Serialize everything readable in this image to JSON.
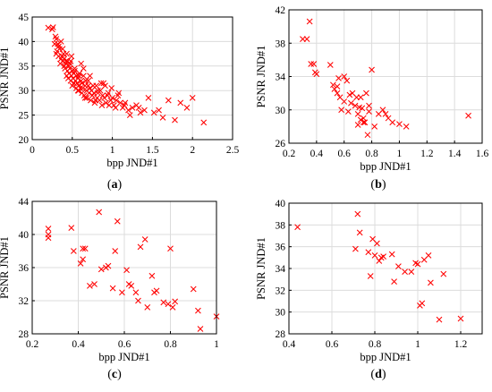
{
  "chart_data": [
    {
      "type": "scatter",
      "caption": "a",
      "xlabel": "bpp JND#1",
      "ylabel": "PSNR JND#1",
      "xlim": [
        0,
        2.5
      ],
      "ylim": [
        20,
        45
      ],
      "xticks": [
        "0",
        "0.5",
        "1",
        "1.5",
        "2",
        "2.5"
      ],
      "yticks": [
        "20",
        "25",
        "30",
        "35",
        "40",
        "45"
      ],
      "grid": true,
      "marker": "x",
      "color": "#ff0000",
      "x": [
        0.2,
        0.25,
        0.26,
        0.28,
        0.29,
        0.3,
        0.31,
        0.3,
        0.33,
        0.33,
        0.34,
        0.36,
        0.37,
        0.35,
        0.38,
        0.39,
        0.4,
        0.4,
        0.41,
        0.42,
        0.43,
        0.44,
        0.44,
        0.45,
        0.46,
        0.46,
        0.47,
        0.48,
        0.48,
        0.49,
        0.5,
        0.5,
        0.51,
        0.52,
        0.52,
        0.53,
        0.54,
        0.55,
        0.55,
        0.56,
        0.57,
        0.58,
        0.58,
        0.59,
        0.6,
        0.61,
        0.62,
        0.62,
        0.63,
        0.64,
        0.65,
        0.66,
        0.67,
        0.68,
        0.68,
        0.7,
        0.71,
        0.72,
        0.73,
        0.74,
        0.75,
        0.77,
        0.78,
        0.8,
        0.81,
        0.82,
        0.84,
        0.85,
        0.87,
        0.88,
        0.9,
        0.92,
        0.94,
        0.96,
        0.98,
        1.0,
        1.02,
        1.04,
        1.07,
        1.1,
        1.13,
        1.16,
        1.2,
        1.25,
        1.3,
        1.35,
        1.4,
        1.45,
        1.52,
        1.58,
        1.63,
        1.7,
        1.78,
        1.85,
        1.93,
        2.0,
        2.14,
        0.32,
        0.36,
        0.42,
        0.47,
        0.53,
        0.58,
        0.64,
        0.7,
        0.76,
        0.82,
        0.89,
        0.95,
        1.05,
        1.15,
        0.43,
        0.57,
        0.66,
        0.79,
        0.91,
        1.22,
        1.33,
        0.38,
        0.49,
        0.61,
        0.72,
        0.86,
        0.99,
        1.08
      ],
      "y": [
        42.8,
        42.5,
        42.9,
        39.5,
        41.0,
        40.5,
        38.0,
        37.5,
        39.0,
        37.0,
        38.5,
        36.5,
        37.0,
        35.5,
        36.0,
        37.5,
        35.0,
        36.5,
        34.5,
        35.5,
        33.0,
        34.0,
        36.0,
        32.5,
        35.0,
        33.5,
        34.5,
        32.0,
        36.0,
        33.0,
        31.0,
        34.0,
        32.5,
        33.5,
        31.5,
        34.5,
        32.0,
        30.5,
        33.0,
        31.5,
        32.5,
        30.0,
        31.0,
        33.5,
        30.5,
        32.0,
        29.5,
        31.5,
        30.5,
        33.0,
        29.0,
        31.0,
        32.0,
        30.0,
        28.5,
        31.0,
        29.5,
        30.5,
        28.0,
        30.0,
        29.0,
        29.5,
        27.5,
        31.0,
        28.5,
        29.5,
        28.0,
        30.0,
        27.0,
        29.0,
        28.5,
        27.5,
        29.0,
        27.0,
        28.0,
        28.5,
        27.0,
        26.5,
        29.0,
        27.5,
        26.5,
        27.5,
        26.0,
        26.5,
        27.0,
        25.5,
        26.0,
        28.5,
        25.5,
        26.0,
        24.5,
        28.0,
        24.0,
        27.5,
        26.5,
        28.5,
        23.5,
        39.5,
        40.0,
        36.0,
        35.5,
        34.0,
        33.0,
        34.5,
        32.0,
        31.0,
        30.0,
        31.5,
        29.5,
        28.0,
        27.0,
        37.5,
        30.0,
        28.5,
        28.0,
        31.0,
        25.0,
        26.5,
        38.5,
        37.0,
        35.5,
        33.0,
        31.5,
        30.5,
        29.5
      ]
    },
    {
      "type": "scatter",
      "caption": "b",
      "xlabel": "bpp JND#1",
      "ylabel": "PSNR JND#1",
      "xlim": [
        0.2,
        1.6
      ],
      "ylim": [
        26,
        42
      ],
      "xticks": [
        "0.2",
        "0.4",
        "0.6",
        "0.8",
        "1",
        "1.2",
        "1.4",
        "1.6"
      ],
      "yticks": [
        "26",
        "30",
        "34",
        "38",
        "42"
      ],
      "grid": true,
      "marker": "x",
      "color": "#ff0000",
      "x": [
        0.3,
        0.33,
        0.35,
        0.36,
        0.38,
        0.4,
        0.39,
        0.5,
        0.52,
        0.53,
        0.55,
        0.56,
        0.57,
        0.58,
        0.6,
        0.62,
        0.64,
        0.66,
        0.68,
        0.69,
        0.7,
        0.71,
        0.72,
        0.73,
        0.74,
        0.75,
        0.76,
        0.77,
        0.78,
        0.8,
        0.82,
        0.85,
        0.88,
        0.9,
        0.92,
        0.95,
        1.0,
        1.05,
        1.5,
        0.55,
        0.6,
        0.65,
        0.72,
        0.74,
        0.78,
        0.63,
        0.7
      ],
      "y": [
        38.5,
        38.5,
        40.6,
        35.5,
        35.5,
        34.3,
        34.5,
        35.4,
        33.0,
        32.5,
        32.0,
        33.8,
        31.5,
        30.0,
        34.0,
        33.5,
        31.8,
        32.0,
        30.5,
        31.5,
        29.5,
        30.3,
        28.8,
        30.2,
        29.0,
        28.5,
        32.0,
        27.0,
        29.8,
        34.8,
        28.0,
        29.5,
        30.0,
        29.5,
        29.0,
        28.5,
        28.3,
        28.0,
        29.3,
        32.8,
        31.0,
        30.8,
        31.5,
        28.5,
        30.5,
        29.8,
        28.2
      ]
    },
    {
      "type": "scatter",
      "caption": "c",
      "xlabel": "bpp JND#1",
      "ylabel": "PSNR JND#1",
      "xlim": [
        0.2,
        1.0
      ],
      "ylim": [
        28,
        44
      ],
      "xticks": [
        "0.2",
        "0.4",
        "0.6",
        "0.8",
        "1"
      ],
      "yticks": [
        "28",
        "32",
        "36",
        "40",
        "44"
      ],
      "grid": true,
      "marker": "x",
      "color": "#ff0000",
      "x": [
        0.27,
        0.27,
        0.27,
        0.37,
        0.38,
        0.41,
        0.42,
        0.42,
        0.43,
        0.45,
        0.47,
        0.49,
        0.5,
        0.52,
        0.53,
        0.55,
        0.56,
        0.57,
        0.59,
        0.61,
        0.62,
        0.63,
        0.65,
        0.66,
        0.67,
        0.69,
        0.7,
        0.72,
        0.73,
        0.74,
        0.77,
        0.79,
        0.8,
        0.81,
        0.82,
        0.9,
        0.92,
        0.93,
        1.0
      ],
      "y": [
        40.7,
        40.0,
        39.6,
        40.8,
        38.0,
        36.5,
        38.3,
        37.0,
        38.3,
        33.8,
        34.0,
        42.7,
        35.8,
        36.0,
        36.2,
        33.5,
        38.0,
        41.6,
        33.0,
        35.7,
        34.0,
        33.8,
        33.0,
        32.0,
        38.5,
        39.4,
        31.2,
        35.0,
        33.0,
        33.2,
        31.8,
        31.6,
        38.3,
        31.2,
        31.9,
        33.4,
        30.8,
        28.6,
        30.1
      ]
    },
    {
      "type": "scatter",
      "caption": "d",
      "xlabel": "bpp JND#1",
      "ylabel": "PSNR JND#1",
      "xlim": [
        0.4,
        1.3
      ],
      "ylim": [
        28,
        40
      ],
      "xticks": [
        "0.4",
        "0.6",
        "0.8",
        "1",
        "1.2"
      ],
      "yticks": [
        "28",
        "30",
        "32",
        "34",
        "36",
        "38",
        "40"
      ],
      "grid": true,
      "marker": "x",
      "color": "#ff0000",
      "x": [
        0.44,
        0.71,
        0.72,
        0.73,
        0.77,
        0.78,
        0.79,
        0.8,
        0.81,
        0.82,
        0.83,
        0.84,
        0.88,
        0.89,
        0.91,
        0.94,
        0.97,
        0.99,
        1.0,
        1.01,
        1.02,
        1.03,
        1.05,
        1.06,
        1.1,
        1.12,
        1.2
      ],
      "y": [
        37.8,
        35.8,
        39.0,
        37.3,
        35.5,
        33.3,
        36.7,
        35.2,
        36.3,
        34.7,
        35.0,
        35.1,
        35.3,
        32.8,
        34.2,
        33.7,
        33.7,
        34.5,
        34.4,
        30.6,
        30.8,
        34.8,
        35.2,
        32.7,
        29.3,
        33.5,
        29.4
      ]
    }
  ]
}
